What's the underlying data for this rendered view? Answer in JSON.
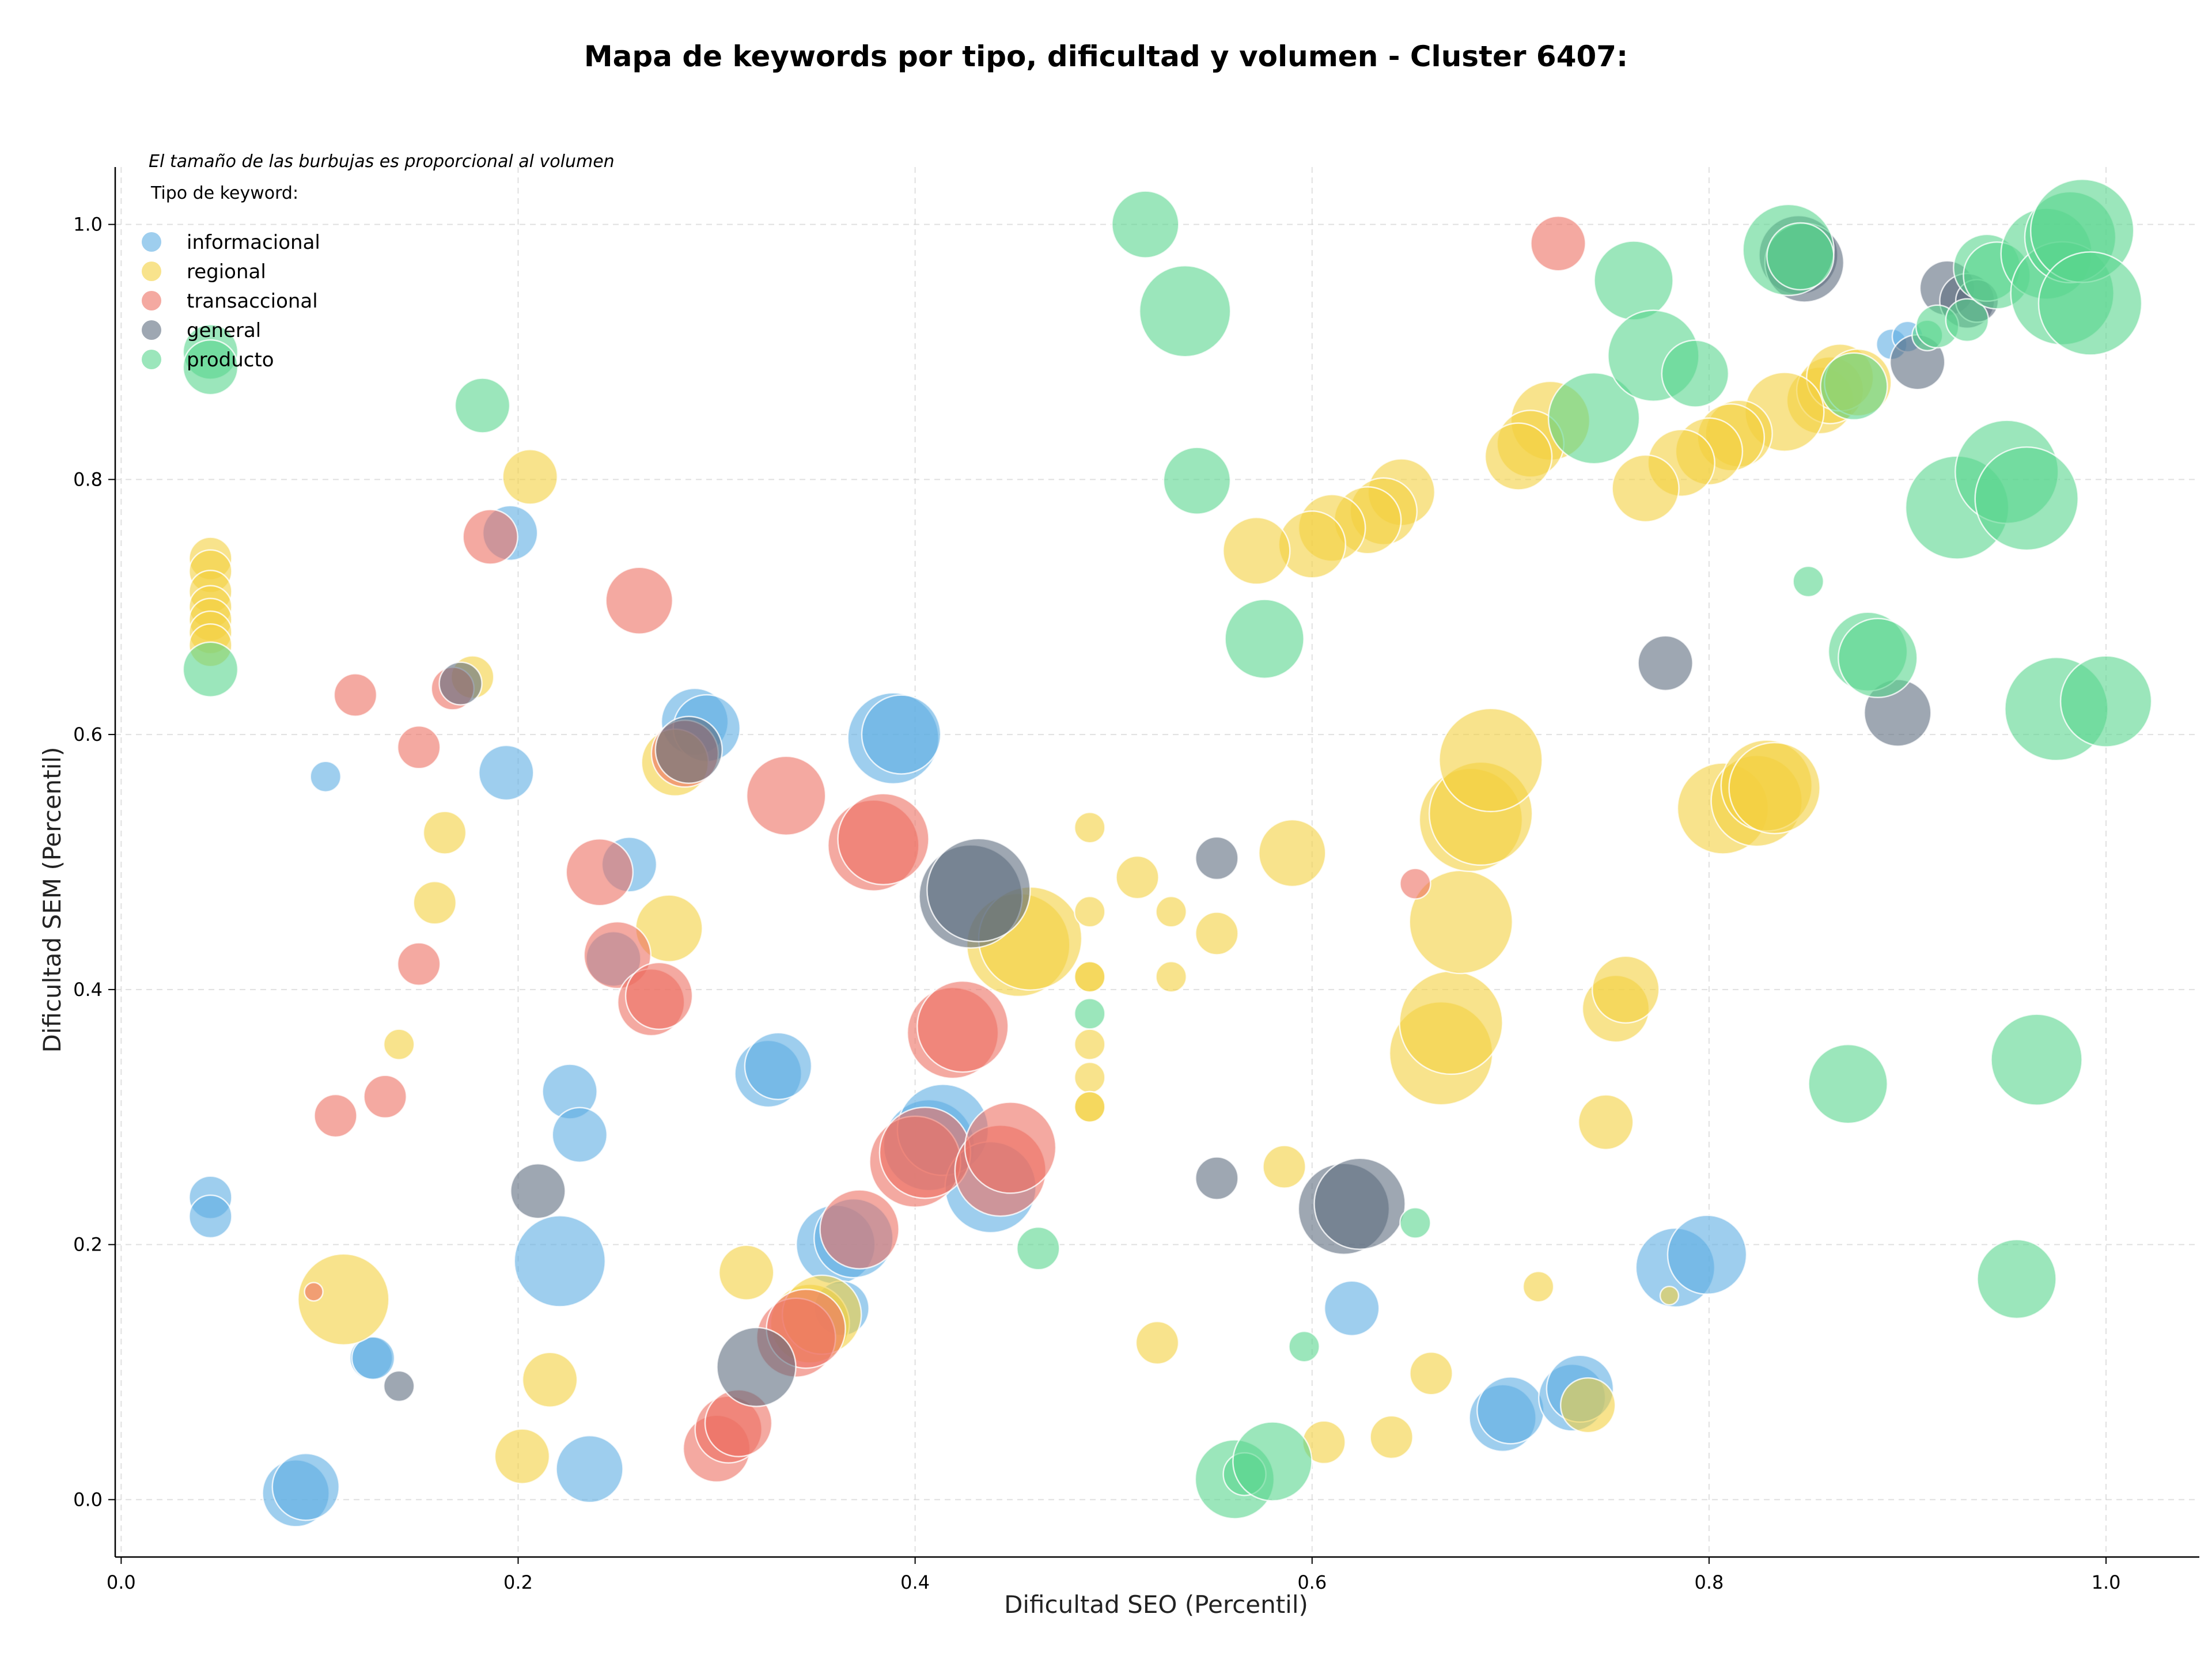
{
  "chart_data": {
    "type": "scatter",
    "title": "Mapa de keywords por tipo, dificultad y volumen - Cluster 6407:",
    "xlabel": "Dificultad SEO (Percentil)",
    "ylabel": "Dificultad SEM (Percentil)",
    "note": "El tamaño de las burbujas es proporcional al volumen",
    "legend_title": "Tipo de keyword:",
    "legend_position": "top-left",
    "grid": true,
    "xlim": [
      -0.003,
      1.047
    ],
    "ylim": [
      -0.045,
      1.045
    ],
    "xticks": [
      "0.0",
      "0.2",
      "0.4",
      "0.6",
      "0.8",
      "1.0"
    ],
    "yticks": [
      "0.0",
      "0.2",
      "0.4",
      "0.6",
      "0.8",
      "1.0"
    ],
    "series": [
      {
        "name": "informacional",
        "color": "#5DADE2",
        "points": [
          [
            0.103,
            0.567,
            2
          ],
          [
            0.196,
            0.758,
            4
          ],
          [
            0.194,
            0.57,
            4
          ],
          [
            0.045,
            0.237,
            3
          ],
          [
            0.045,
            0.222,
            3
          ],
          [
            0.126,
            0.111,
            3
          ],
          [
            0.127,
            0.111,
            3
          ],
          [
            0.088,
            0.005,
            5
          ],
          [
            0.093,
            0.01,
            5
          ],
          [
            0.221,
            0.187,
            7
          ],
          [
            0.226,
            0.32,
            4
          ],
          [
            0.231,
            0.286,
            4
          ],
          [
            0.236,
            0.024,
            5
          ],
          [
            0.248,
            0.424,
            4
          ],
          [
            0.256,
            0.498,
            4
          ],
          [
            0.289,
            0.61,
            5
          ],
          [
            0.295,
            0.605,
            5
          ],
          [
            0.326,
            0.334,
            5
          ],
          [
            0.331,
            0.34,
            5
          ],
          [
            0.36,
            0.2,
            6
          ],
          [
            0.363,
            0.15,
            4
          ],
          [
            0.369,
            0.205,
            6
          ],
          [
            0.389,
            0.597,
            7
          ],
          [
            0.393,
            0.6,
            6
          ],
          [
            0.407,
            0.278,
            7
          ],
          [
            0.414,
            0.29,
            7
          ],
          [
            0.438,
            0.245,
            7
          ],
          [
            0.62,
            0.15,
            4
          ],
          [
            0.696,
            0.064,
            5
          ],
          [
            0.7,
            0.07,
            5
          ],
          [
            0.731,
            0.08,
            5
          ],
          [
            0.735,
            0.087,
            5
          ],
          [
            0.783,
            0.182,
            6
          ],
          [
            0.799,
            0.192,
            6
          ],
          [
            0.892,
            0.906,
            2
          ],
          [
            0.9,
            0.912,
            2
          ]
        ]
      },
      {
        "name": "regional",
        "color": "#F4D03F",
        "points": [
          [
            0.045,
            0.738,
            3
          ],
          [
            0.045,
            0.728,
            3
          ],
          [
            0.045,
            0.712,
            3
          ],
          [
            0.045,
            0.7,
            3
          ],
          [
            0.045,
            0.69,
            3
          ],
          [
            0.045,
            0.68,
            3
          ],
          [
            0.045,
            0.67,
            3
          ],
          [
            0.206,
            0.802,
            4
          ],
          [
            0.177,
            0.645,
            3
          ],
          [
            0.163,
            0.523,
            3
          ],
          [
            0.158,
            0.468,
            3
          ],
          [
            0.14,
            0.357,
            2
          ],
          [
            0.112,
            0.157,
            7
          ],
          [
            0.202,
            0.034,
            4
          ],
          [
            0.216,
            0.094,
            4
          ],
          [
            0.279,
            0.578,
            5
          ],
          [
            0.276,
            0.448,
            5
          ],
          [
            0.315,
            0.178,
            4
          ],
          [
            0.347,
            0.138,
            6
          ],
          [
            0.353,
            0.145,
            6
          ],
          [
            0.452,
            0.435,
            8
          ],
          [
            0.458,
            0.44,
            8
          ],
          [
            0.488,
            0.527,
            2
          ],
          [
            0.488,
            0.461,
            2
          ],
          [
            0.488,
            0.41,
            2
          ],
          [
            0.488,
            0.41,
            2
          ],
          [
            0.488,
            0.357,
            2
          ],
          [
            0.488,
            0.331,
            2
          ],
          [
            0.488,
            0.308,
            2
          ],
          [
            0.488,
            0.308,
            2
          ],
          [
            0.512,
            0.488,
            3
          ],
          [
            0.529,
            0.461,
            2
          ],
          [
            0.529,
            0.41,
            2
          ],
          [
            0.522,
            0.123,
            3
          ],
          [
            0.552,
            0.444,
            3
          ],
          [
            0.586,
            0.261,
            3
          ],
          [
            0.59,
            0.507,
            5
          ],
          [
            0.606,
            0.045,
            3
          ],
          [
            0.64,
            0.049,
            3
          ],
          [
            0.66,
            0.099,
            3
          ],
          [
            0.665,
            0.35,
            8
          ],
          [
            0.67,
            0.374,
            8
          ],
          [
            0.675,
            0.453,
            8
          ],
          [
            0.68,
            0.533,
            8
          ],
          [
            0.685,
            0.538,
            8
          ],
          [
            0.69,
            0.58,
            8
          ],
          [
            0.714,
            0.167,
            2
          ],
          [
            0.739,
            0.074,
            4
          ],
          [
            0.748,
            0.296,
            4
          ],
          [
            0.753,
            0.385,
            5
          ],
          [
            0.758,
            0.4,
            5
          ],
          [
            0.78,
            0.16,
            1
          ],
          [
            0.807,
            0.542,
            7
          ],
          [
            0.824,
            0.548,
            7
          ],
          [
            0.829,
            0.56,
            7
          ],
          [
            0.833,
            0.558,
            7
          ],
          [
            0.856,
            0.862,
            5
          ],
          [
            0.861,
            0.87,
            5
          ],
          [
            0.866,
            0.88,
            5
          ],
          [
            0.875,
            0.876,
            5
          ],
          [
            0.838,
            0.853,
            6
          ],
          [
            0.815,
            0.836,
            5
          ],
          [
            0.811,
            0.833,
            5
          ],
          [
            0.8,
            0.822,
            5
          ],
          [
            0.786,
            0.813,
            5
          ],
          [
            0.768,
            0.793,
            5
          ],
          [
            0.72,
            0.846,
            6
          ],
          [
            0.71,
            0.828,
            5
          ],
          [
            0.704,
            0.818,
            5
          ],
          [
            0.645,
            0.79,
            5
          ],
          [
            0.636,
            0.775,
            5
          ],
          [
            0.628,
            0.768,
            5
          ],
          [
            0.61,
            0.762,
            5
          ],
          [
            0.6,
            0.749,
            5
          ],
          [
            0.572,
            0.744,
            5
          ]
        ]
      },
      {
        "name": "transaccional",
        "color": "#EC7063",
        "points": [
          [
            0.097,
            0.163,
            1
          ],
          [
            0.108,
            0.301,
            3
          ],
          [
            0.118,
            0.631,
            3
          ],
          [
            0.133,
            0.316,
            3
          ],
          [
            0.15,
            0.59,
            3
          ],
          [
            0.15,
            0.42,
            3
          ],
          [
            0.167,
            0.636,
            3
          ],
          [
            0.186,
            0.755,
            4
          ],
          [
            0.241,
            0.492,
            5
          ],
          [
            0.25,
            0.427,
            5
          ],
          [
            0.261,
            0.705,
            5
          ],
          [
            0.267,
            0.39,
            5
          ],
          [
            0.271,
            0.395,
            5
          ],
          [
            0.284,
            0.585,
            5
          ],
          [
            0.3,
            0.04,
            5
          ],
          [
            0.306,
            0.055,
            5
          ],
          [
            0.311,
            0.06,
            5
          ],
          [
            0.335,
            0.552,
            6
          ],
          [
            0.34,
            0.127,
            6
          ],
          [
            0.345,
            0.134,
            6
          ],
          [
            0.372,
            0.212,
            6
          ],
          [
            0.379,
            0.513,
            7
          ],
          [
            0.384,
            0.518,
            7
          ],
          [
            0.4,
            0.265,
            7
          ],
          [
            0.405,
            0.272,
            7
          ],
          [
            0.419,
            0.366,
            7
          ],
          [
            0.424,
            0.371,
            7
          ],
          [
            0.443,
            0.258,
            7
          ],
          [
            0.448,
            0.276,
            7
          ],
          [
            0.652,
            0.483,
            2
          ],
          [
            0.724,
            0.985,
            4
          ]
        ]
      },
      {
        "name": "general",
        "color": "#5D6D7E",
        "points": [
          [
            0.14,
            0.089,
            2
          ],
          [
            0.171,
            0.64,
            3
          ],
          [
            0.21,
            0.242,
            4
          ],
          [
            0.286,
            0.588,
            5
          ],
          [
            0.32,
            0.104,
            6
          ],
          [
            0.428,
            0.473,
            8
          ],
          [
            0.432,
            0.478,
            8
          ],
          [
            0.552,
            0.503,
            3
          ],
          [
            0.552,
            0.252,
            3
          ],
          [
            0.616,
            0.228,
            7
          ],
          [
            0.624,
            0.232,
            7
          ],
          [
            0.778,
            0.656,
            4
          ],
          [
            0.845,
            0.976,
            6
          ],
          [
            0.848,
            0.97,
            6
          ],
          [
            0.895,
            0.617,
            5
          ],
          [
            0.905,
            0.892,
            4
          ],
          [
            0.92,
            0.95,
            4
          ],
          [
            0.93,
            0.94,
            4
          ],
          [
            0.935,
            0.94,
            3
          ]
        ]
      },
      {
        "name": "producto",
        "color": "#58D68D",
        "points": [
          [
            0.045,
            0.9,
            4
          ],
          [
            0.045,
            0.888,
            4
          ],
          [
            0.045,
            0.651,
            4
          ],
          [
            0.182,
            0.858,
            4
          ],
          [
            0.462,
            0.197,
            3
          ],
          [
            0.488,
            0.381,
            2
          ],
          [
            0.516,
            1.0,
            5
          ],
          [
            0.536,
            0.932,
            7
          ],
          [
            0.542,
            0.799,
            5
          ],
          [
            0.561,
            0.016,
            6
          ],
          [
            0.566,
            0.02,
            3
          ],
          [
            0.576,
            0.675,
            6
          ],
          [
            0.58,
            0.03,
            6
          ],
          [
            0.596,
            0.12,
            2
          ],
          [
            0.652,
            0.217,
            2
          ],
          [
            0.742,
            0.848,
            7
          ],
          [
            0.762,
            0.956,
            6
          ],
          [
            0.772,
            0.897,
            7
          ],
          [
            0.793,
            0.883,
            5
          ],
          [
            0.84,
            0.98,
            7
          ],
          [
            0.846,
            0.975,
            5
          ],
          [
            0.85,
            0.72,
            2
          ],
          [
            0.87,
            0.326,
            6
          ],
          [
            0.873,
            0.873,
            5
          ],
          [
            0.88,
            0.665,
            6
          ],
          [
            0.885,
            0.66,
            6
          ],
          [
            0.91,
            0.913,
            2
          ],
          [
            0.915,
            0.92,
            3
          ],
          [
            0.925,
            0.778,
            8
          ],
          [
            0.93,
            0.925,
            3
          ],
          [
            0.94,
            0.966,
            5
          ],
          [
            0.945,
            0.96,
            5
          ],
          [
            0.95,
            0.806,
            8
          ],
          [
            0.955,
            0.173,
            6
          ],
          [
            0.96,
            0.785,
            8
          ],
          [
            0.965,
            0.345,
            7
          ],
          [
            0.97,
            0.977,
            7
          ],
          [
            0.975,
            0.62,
            8
          ],
          [
            0.978,
            0.946,
            8
          ],
          [
            0.982,
            0.99,
            7
          ],
          [
            0.988,
            0.995,
            8
          ],
          [
            0.992,
            0.938,
            8
          ],
          [
            1.0,
            0.626,
            7
          ]
        ]
      }
    ]
  }
}
